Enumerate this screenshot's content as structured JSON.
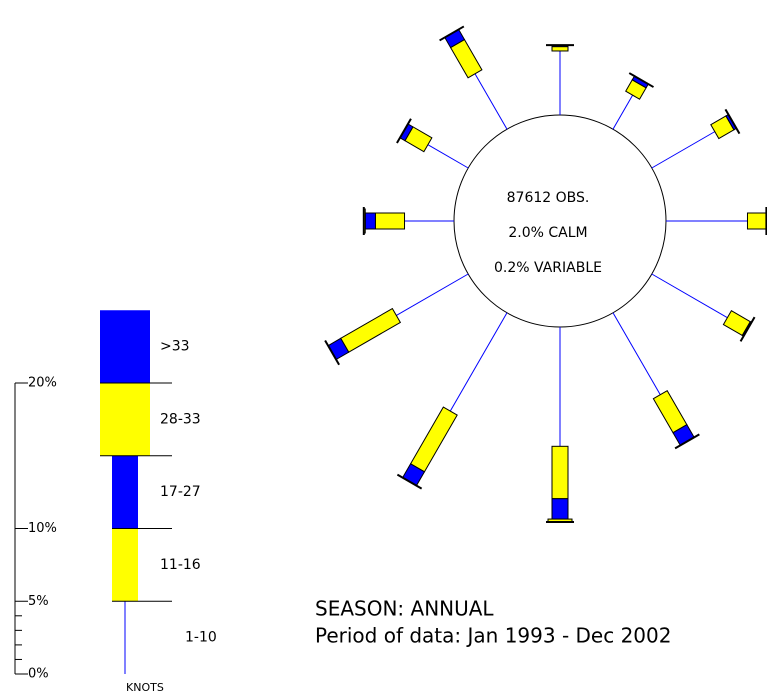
{
  "chart_data": {
    "type": "windrose",
    "categories": [
      null,
      null,
      null,
      null,
      null,
      null,
      null,
      null,
      null,
      null,
      null,
      null
    ],
    "series": [
      {
        "name": "1-10",
        "color": "#0000ff",
        "values": [
          4.4,
          2.7,
          5.0,
          5.6,
          6.0,
          6.5,
          8.2,
          7.8,
          5.7,
          3.4,
          3.2,
          4.4
        ]
      },
      {
        "name": "11-16",
        "color": "#ffff00",
        "values": [
          0.3,
          0.9,
          1.2,
          1.3,
          1.5,
          2.7,
          3.6,
          4.5,
          4.1,
          2.0,
          1.5,
          2.4
        ]
      },
      {
        "name": "17-27",
        "color": "#0000ff",
        "values": [
          0.1,
          0.3,
          0.2,
          0,
          0.1,
          1.0,
          1.4,
          1.1,
          1.0,
          0.7,
          0.4,
          0.8
        ]
      },
      {
        "name": "28-33",
        "color": "#ffff00",
        "values": [
          0,
          0,
          0,
          0,
          0,
          0,
          0.2,
          0,
          0,
          0.1,
          0,
          0
        ]
      },
      {
        "name": ">33",
        "color": "#0000ff",
        "values": [
          0,
          0,
          0,
          0,
          0,
          0,
          0,
          0,
          0,
          0,
          0,
          0
        ]
      }
    ],
    "ylim": [
      0,
      20
    ],
    "yticks": [
      {
        "value": 0,
        "label": "0%"
      },
      {
        "value": 5,
        "label": "5%"
      },
      {
        "value": 10,
        "label": "10%"
      },
      {
        "value": 20,
        "label": "20%"
      }
    ],
    "yticks_minor": [
      1,
      2,
      3,
      4
    ],
    "legend_step": 5,
    "legend_unit": "KNOTS",
    "center_text": [
      "87612 OBS.",
      "2.0% CALM",
      "0.2% VARIABLE"
    ],
    "annotations": [
      "SEASON: ANNUAL",
      "Period of data: Jan 1993 - Dec 2002"
    ]
  }
}
